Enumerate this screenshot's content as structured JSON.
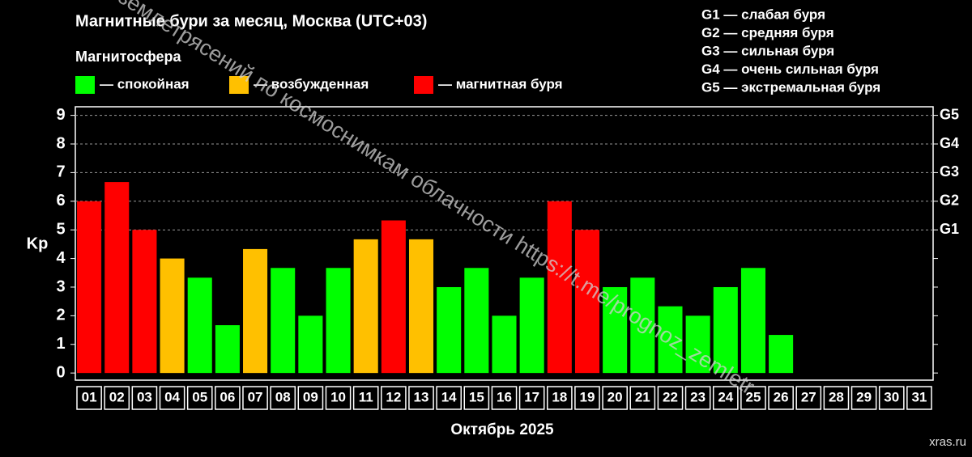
{
  "chart_data": {
    "type": "bar",
    "title": "Магнитные бури за месяц, Москва (UTC+03)",
    "subtitle": "Магнитосфера",
    "legend": [
      {
        "label": "— спокойная",
        "color": "#00ff00"
      },
      {
        "label": "— возбужденная",
        "color": "#ffc000"
      },
      {
        "label": "— магнитная буря",
        "color": "#ff0000"
      }
    ],
    "g_legend": [
      "G1 — слабая буря",
      "G2 — средняя буря",
      "G3 — сильная буря",
      "G4 — очень сильная буря",
      "G5 — экстремальная буря"
    ],
    "x_label": "Октябрь 2025",
    "y_label": "Kp",
    "categories": [
      "01",
      "02",
      "03",
      "04",
      "05",
      "06",
      "07",
      "08",
      "09",
      "10",
      "11",
      "12",
      "13",
      "14",
      "15",
      "16",
      "17",
      "18",
      "19",
      "20",
      "21",
      "22",
      "23",
      "24",
      "25",
      "26",
      "27",
      "28",
      "29",
      "30",
      "31"
    ],
    "values": [
      6,
      6.67,
      5,
      4,
      3.33,
      1.67,
      4.33,
      3.67,
      2,
      3.67,
      4.67,
      5.33,
      4.67,
      3,
      3.67,
      2,
      3.33,
      6,
      5,
      3,
      3.33,
      2.33,
      2,
      3,
      3.67,
      1.33,
      null,
      null,
      null,
      null,
      null
    ],
    "colors": [
      "#ff0000",
      "#ff0000",
      "#ff0000",
      "#ffc000",
      "#00ff00",
      "#00ff00",
      "#ffc000",
      "#00ff00",
      "#00ff00",
      "#00ff00",
      "#ffc000",
      "#ff0000",
      "#ffc000",
      "#00ff00",
      "#00ff00",
      "#00ff00",
      "#00ff00",
      "#ff0000",
      "#ff0000",
      "#00ff00",
      "#00ff00",
      "#00ff00",
      "#00ff00",
      "#00ff00",
      "#00ff00",
      "#00ff00",
      null,
      null,
      null,
      null,
      null
    ],
    "ylim": [
      -0.25,
      9.3
    ],
    "yticks": [
      0,
      1,
      2,
      3,
      4,
      5,
      6,
      7,
      8,
      9
    ],
    "y2lim": [
      -0.25,
      9.3
    ],
    "y2ticks": [
      {
        "value": 5,
        "label": "G1"
      },
      {
        "value": 6,
        "label": "G2"
      },
      {
        "value": 7,
        "label": "G3"
      },
      {
        "value": 8,
        "label": "G4"
      },
      {
        "value": 9,
        "label": "G5"
      }
    ],
    "grid": true,
    "watermark": "прогноз землетрясений по космоснимкам облачности  https://t.me/prognoz_zemletr",
    "credit": "xras.ru"
  }
}
